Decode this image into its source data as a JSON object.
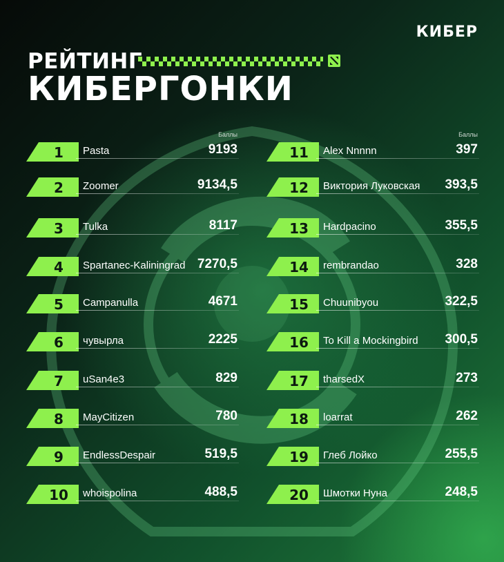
{
  "brand": "КИБЕР",
  "title_line1": "РЕЙТИНГ",
  "title_line2": "КИБЕРГОНКИ",
  "points_label": "Баллы",
  "colors": {
    "accent": "#8ef04d",
    "bg_dark": "#060a08",
    "bg_green": "#1f7a3a"
  },
  "icons": {
    "emblem": "aegis-emblem-icon",
    "game": "dota-icon"
  },
  "left_column": [
    {
      "rank": "1",
      "name": "Pasta",
      "score": "9193"
    },
    {
      "rank": "2",
      "name": "Zoomer",
      "score": "9134,5"
    },
    {
      "rank": "3",
      "name": "Tulka",
      "score": "8117"
    },
    {
      "rank": "4",
      "name": "Spartanec-Kaliningrad",
      "score": "7270,5"
    },
    {
      "rank": "5",
      "name": "Campanulla",
      "score": "4671"
    },
    {
      "rank": "6",
      "name": "чувырла",
      "score": "2225"
    },
    {
      "rank": "7",
      "name": "uSan4e3",
      "score": "829"
    },
    {
      "rank": "8",
      "name": "MayCitizen",
      "score": "780"
    },
    {
      "rank": "9",
      "name": "EndlessDespair",
      "score": "519,5"
    },
    {
      "rank": "10",
      "name": "whoispolina",
      "score": "488,5"
    }
  ],
  "right_column": [
    {
      "rank": "11",
      "name": "Alex Nnnnn",
      "score": "397"
    },
    {
      "rank": "12",
      "name": "Виктория Луковская",
      "score": "393,5"
    },
    {
      "rank": "13",
      "name": "Hardpacino",
      "score": "355,5"
    },
    {
      "rank": "14",
      "name": "rembrandao",
      "score": "328"
    },
    {
      "rank": "15",
      "name": "Chuunibyou",
      "score": "322,5"
    },
    {
      "rank": "16",
      "name": "To Kill a Mockingbird",
      "score": "300,5"
    },
    {
      "rank": "17",
      "name": "tharsedX",
      "score": "273"
    },
    {
      "rank": "18",
      "name": "loarrat",
      "score": "262"
    },
    {
      "rank": "19",
      "name": "Глеб Лойко",
      "score": "255,5"
    },
    {
      "rank": "20",
      "name": "Шмотки Нуна",
      "score": "248,5"
    }
  ]
}
